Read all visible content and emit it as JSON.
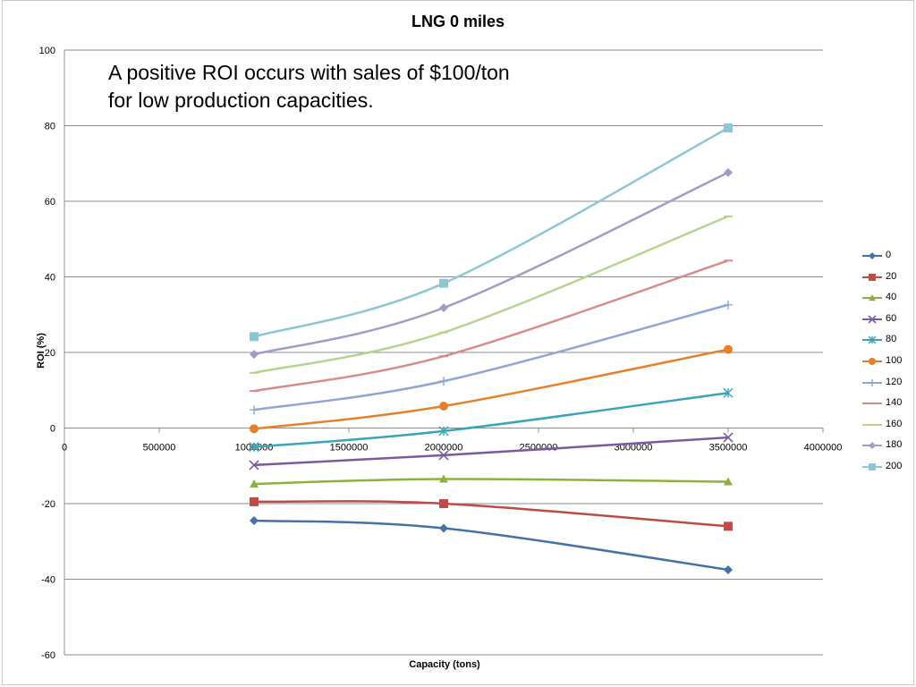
{
  "annotation": "A positive ROI occurs with sales of $100/ton for low production capacities.",
  "chart_data": {
    "type": "line",
    "title": "LNG 0 miles",
    "xlabel": "Capacity (tons)",
    "ylabel": "ROI (%)",
    "xlim": [
      0,
      4000000
    ],
    "ylim": [
      -60,
      100
    ],
    "x_ticks": [
      "0",
      "500000",
      "1000000",
      "1500000",
      "2000000",
      "2500000",
      "3000000",
      "3500000",
      "4000000"
    ],
    "y_ticks": [
      "100",
      "80",
      "60",
      "40",
      "20",
      "0",
      "-20",
      "-40",
      "-60"
    ],
    "grid": "horizontal",
    "legend_position": "right",
    "x": [
      1000000,
      2000000,
      3500000
    ],
    "series": [
      {
        "name": "0",
        "values": [
          -24.5,
          -26.5,
          -37.5
        ],
        "color": "#4472a8",
        "marker": "diamond"
      },
      {
        "name": "20",
        "values": [
          -19.5,
          -20.0,
          -26.0
        ],
        "color": "#be4b48",
        "marker": "square"
      },
      {
        "name": "40",
        "values": [
          -14.8,
          -13.5,
          -14.2
        ],
        "color": "#8db041",
        "marker": "triangle"
      },
      {
        "name": "60",
        "values": [
          -9.8,
          -7.2,
          -2.5
        ],
        "color": "#7a5b9e",
        "marker": "x"
      },
      {
        "name": "80",
        "values": [
          -5.0,
          -0.8,
          9.3
        ],
        "color": "#3aa4b8",
        "marker": "star"
      },
      {
        "name": "100",
        "values": [
          -0.2,
          5.8,
          20.8
        ],
        "color": "#e5812d",
        "marker": "circle"
      },
      {
        "name": "120",
        "values": [
          4.8,
          12.4,
          32.6
        ],
        "color": "#90a6d3",
        "marker": "plus"
      },
      {
        "name": "140",
        "values": [
          9.8,
          19.0,
          44.3
        ],
        "color": "#d88c8a",
        "marker": "dash"
      },
      {
        "name": "160",
        "values": [
          14.6,
          25.3,
          56.0
        ],
        "color": "#b8d38e",
        "marker": "dash"
      },
      {
        "name": "180",
        "values": [
          19.5,
          31.8,
          67.6
        ],
        "color": "#a899c6",
        "marker": "diamond"
      },
      {
        "name": "200",
        "values": [
          24.2,
          38.3,
          79.4
        ],
        "color": "#8ec6d6",
        "marker": "square"
      }
    ]
  }
}
